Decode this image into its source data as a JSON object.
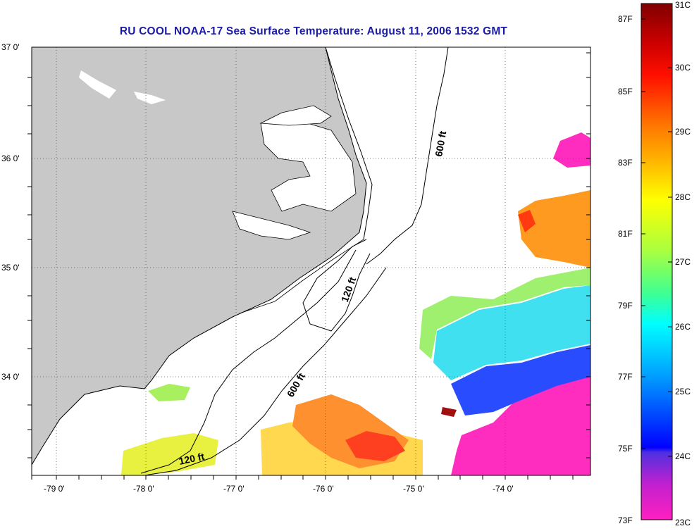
{
  "title": "RU COOL  NOAA-17  Sea Surface Temperature:  August 11, 2006 1532 GMT",
  "map": {
    "lon_labels": [
      "-79 0'",
      "-78 0'",
      "-77 0'",
      "-76 0'",
      "-75 0'",
      "-74 0'"
    ],
    "lat_labels": [
      "37 0'",
      "36 0'",
      "35 0'",
      "34 0'"
    ],
    "contour_labels": [
      "600 ft",
      "120 ft",
      "600 ft",
      "120 ft"
    ]
  },
  "colorbar": {
    "fahrenheit_labels": [
      "87F",
      "85F",
      "83F",
      "81F",
      "79F",
      "77F",
      "75F",
      "73F"
    ],
    "celsius_labels": [
      "31C",
      "30C",
      "29C",
      "28C",
      "27C",
      "26C",
      "25C",
      "24C",
      "23C"
    ],
    "colors": [
      "#7f0000",
      "#ff0000",
      "#ff8c00",
      "#ffff00",
      "#80ff80",
      "#00ffff",
      "#0080ff",
      "#0000ff",
      "#8030d0",
      "#ff20c0"
    ]
  },
  "colors": {
    "land": "#c8c8c8",
    "title": "#1a1aa8"
  }
}
